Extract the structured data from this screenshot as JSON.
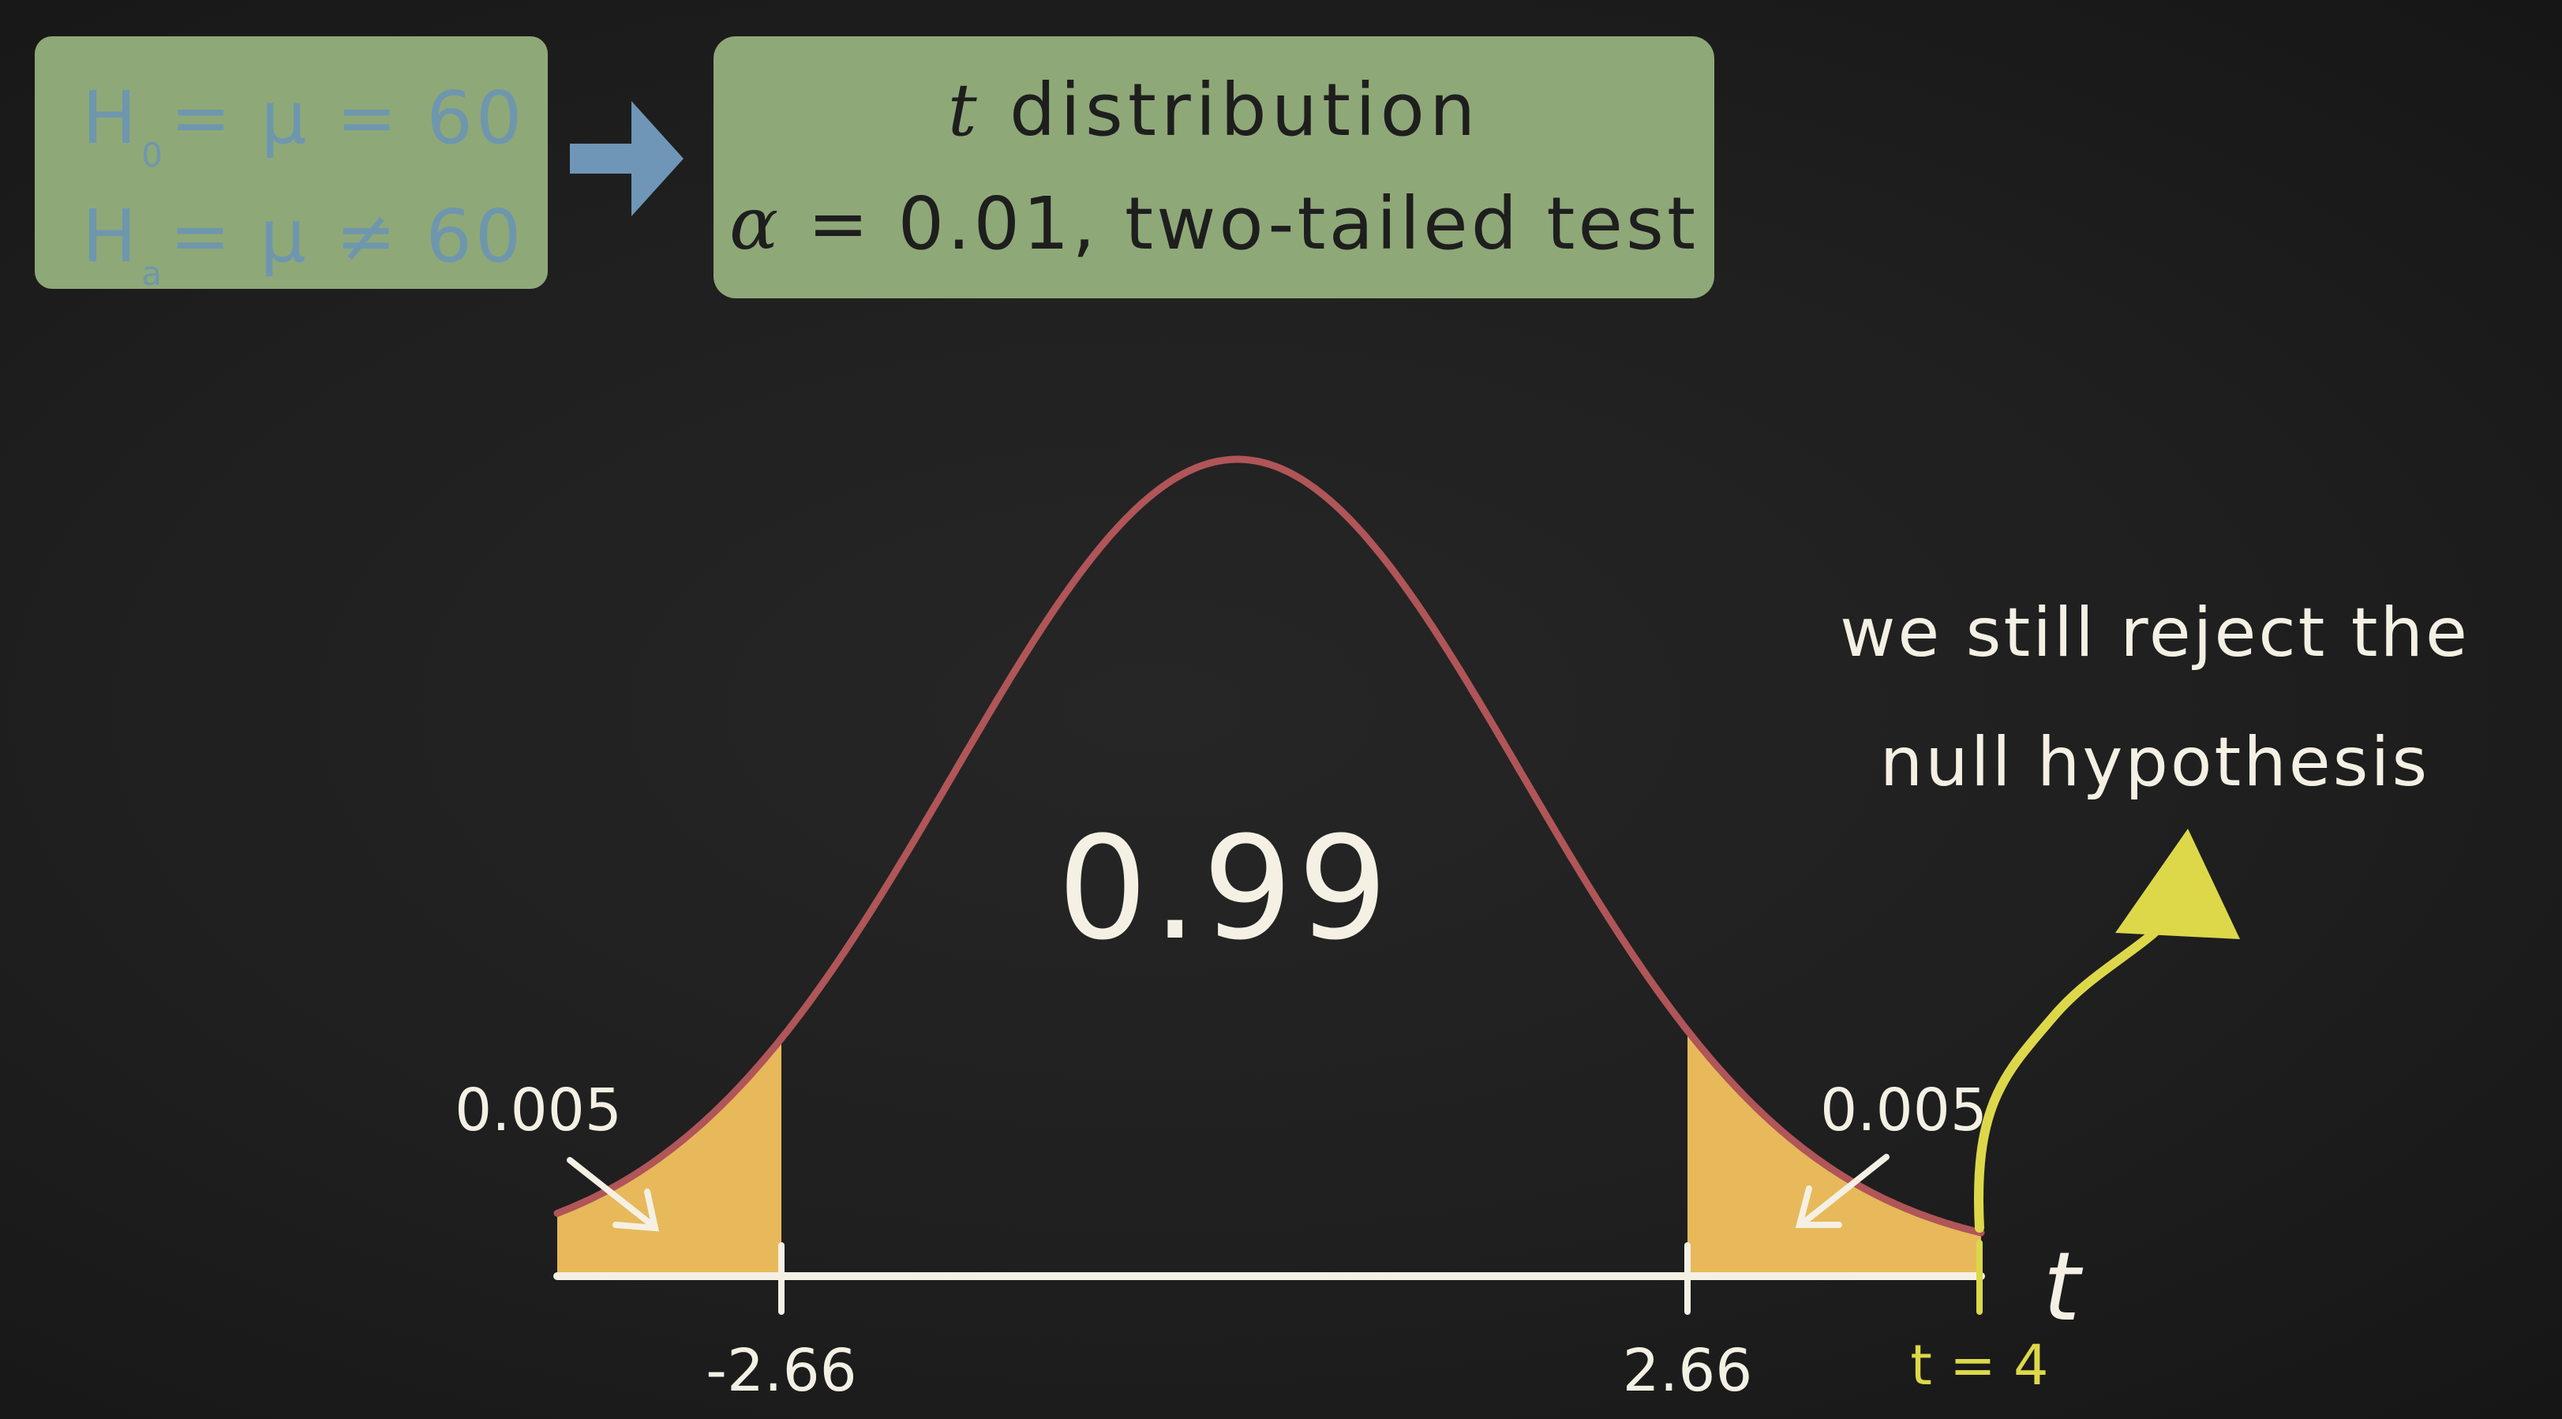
{
  "hypotheses": {
    "null": {
      "symbol": "H",
      "subscript": "0",
      "expression": "= μ = 60"
    },
    "alternative": {
      "symbol": "H",
      "subscript": "a",
      "expression": "= μ ≠ 60"
    }
  },
  "distribution_box": {
    "title_var": "t",
    "title_rest": " distribution",
    "alpha_symbol": "α",
    "alpha_rest": " = 0.01, two-tailed test"
  },
  "chart": {
    "center_area_label": "0.99",
    "left_tail_label": "0.005",
    "right_tail_label": "0.005",
    "left_critical_label": "-2.66",
    "right_critical_label": "2.66",
    "axis_variable": "t",
    "test_stat_label": "t = 4",
    "note_line1": "we still reject the",
    "note_line2": "null hypothesis",
    "curve_color": "#b05558",
    "tail_fill_color": "#e7b95a",
    "axis_color": "#f4f0e4",
    "marker_color": "#ddd84a",
    "box_color": "#8fa878",
    "hypothesis_text_color": "#6e97ae"
  }
}
